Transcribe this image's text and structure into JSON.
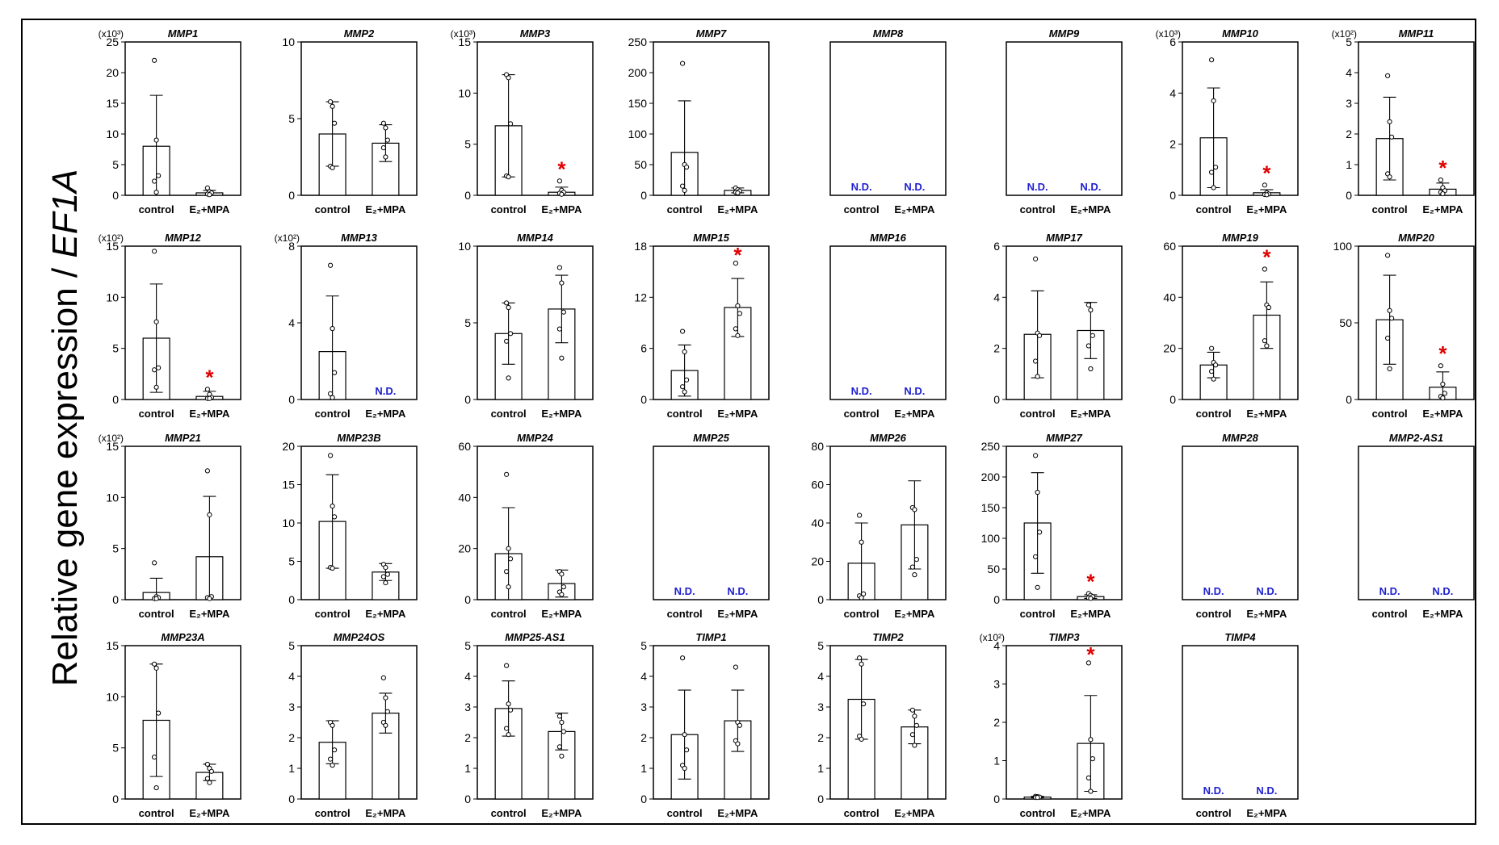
{
  "figure": {
    "ylabel_prefix": "Relative gene expression / ",
    "ylabel_gene": "EF1A",
    "nd_label": "N.D.",
    "sig_marker": "*",
    "colors": {
      "frame": "#000000",
      "bar": "#000000",
      "nd": "#2020d0",
      "sig": "#e00000"
    }
  },
  "chart_data": [
    {
      "type": "bar",
      "title": "MMP1",
      "multiplier": "(x10³)",
      "ylim": [
        0,
        25
      ],
      "yticks": [
        0,
        5,
        10,
        15,
        20,
        25
      ],
      "categories": [
        "control",
        "E₂+MPA"
      ],
      "values": [
        8,
        0.4
      ],
      "errors": [
        8.3,
        0.4
      ],
      "points": [
        [
          22,
          9,
          3.2,
          2.3,
          0.5
        ],
        [
          1.2,
          0.6,
          0.4,
          0.2,
          0.1
        ]
      ],
      "nd": [
        false,
        false
      ],
      "sig": [
        false,
        false
      ]
    },
    {
      "type": "bar",
      "title": "MMP2",
      "multiplier": "",
      "ylim": [
        0,
        10
      ],
      "yticks": [
        0,
        5,
        10
      ],
      "categories": [
        "control",
        "E₂+MPA"
      ],
      "values": [
        4,
        3.4
      ],
      "errors": [
        2.1,
        1.2
      ],
      "points": [
        [
          6.1,
          5.8,
          4.7,
          1.9,
          1.8
        ],
        [
          4.7,
          4.4,
          3.6,
          3.1,
          2.5
        ]
      ],
      "nd": [
        false,
        false
      ],
      "sig": [
        false,
        false
      ]
    },
    {
      "type": "bar",
      "title": "MMP3",
      "multiplier": "(x10³)",
      "ylim": [
        0,
        15
      ],
      "yticks": [
        0,
        5,
        10,
        15
      ],
      "categories": [
        "control",
        "E₂+MPA"
      ],
      "values": [
        6.8,
        0.3
      ],
      "errors": [
        5,
        0.5
      ],
      "points": [
        [
          11.8,
          11.5,
          7,
          1.9,
          1.8
        ],
        [
          1.4,
          0.5,
          0.3,
          0.2,
          0.1
        ]
      ],
      "nd": [
        false,
        false
      ],
      "sig": [
        false,
        true
      ]
    },
    {
      "type": "bar",
      "title": "MMP7",
      "multiplier": "",
      "ylim": [
        0,
        250
      ],
      "yticks": [
        0,
        50,
        100,
        150,
        200,
        250
      ],
      "categories": [
        "control",
        "E₂+MPA"
      ],
      "values": [
        70,
        8
      ],
      "errors": [
        84,
        4
      ],
      "points": [
        [
          215,
          50,
          46,
          15,
          8
        ],
        [
          12,
          9,
          7,
          5,
          4
        ]
      ],
      "nd": [
        false,
        false
      ],
      "sig": [
        false,
        false
      ]
    },
    {
      "type": "bar",
      "title": "MMP8",
      "multiplier": "",
      "ylim": null,
      "yticks": [],
      "categories": [
        "control",
        "E₂+MPA"
      ],
      "values": [
        0,
        0
      ],
      "errors": [
        0,
        0
      ],
      "points": [
        [],
        []
      ],
      "nd": [
        true,
        true
      ],
      "sig": [
        false,
        false
      ]
    },
    {
      "type": "bar",
      "title": "MMP9",
      "multiplier": "",
      "ylim": null,
      "yticks": [],
      "categories": [
        "control",
        "E₂+MPA"
      ],
      "values": [
        0,
        0
      ],
      "errors": [
        0,
        0
      ],
      "points": [
        [],
        []
      ],
      "nd": [
        true,
        true
      ],
      "sig": [
        false,
        false
      ]
    },
    {
      "type": "bar",
      "title": "MMP10",
      "multiplier": "(x10³)",
      "ylim": [
        0,
        6
      ],
      "yticks": [
        0,
        2,
        4,
        6
      ],
      "categories": [
        "control",
        "E₂+MPA"
      ],
      "values": [
        2.25,
        0.1
      ],
      "errors": [
        1.95,
        0.12
      ],
      "points": [
        [
          5.3,
          3.7,
          1.1,
          0.9,
          0.3
        ],
        [
          0.4,
          0.1,
          0.05,
          0.03,
          0.02
        ]
      ],
      "nd": [
        false,
        false
      ],
      "sig": [
        false,
        true
      ]
    },
    {
      "type": "bar",
      "title": "MMP11",
      "multiplier": "(x10²)",
      "ylim": [
        0,
        5
      ],
      "yticks": [
        0,
        1,
        2,
        3,
        4,
        5
      ],
      "categories": [
        "control",
        "E₂+MPA"
      ],
      "values": [
        1.85,
        0.2
      ],
      "errors": [
        1.35,
        0.2
      ],
      "points": [
        [
          3.9,
          2.4,
          1.9,
          0.7,
          0.6
        ],
        [
          0.5,
          0.25,
          0.15,
          0.1,
          0.05
        ]
      ],
      "nd": [
        false,
        false
      ],
      "sig": [
        false,
        true
      ]
    },
    {
      "type": "bar",
      "title": "MMP12",
      "multiplier": "(x10²)",
      "ylim": [
        0,
        15
      ],
      "yticks": [
        0,
        5,
        10,
        15
      ],
      "categories": [
        "control",
        "E₂+MPA"
      ],
      "values": [
        6,
        0.3
      ],
      "errors": [
        5.3,
        0.5
      ],
      "points": [
        [
          14.5,
          7.6,
          3.1,
          2.9,
          1.2
        ],
        [
          1,
          0.5,
          0.2,
          0.1,
          0.1
        ]
      ],
      "nd": [
        false,
        false
      ],
      "sig": [
        false,
        true
      ]
    },
    {
      "type": "bar",
      "title": "MMP13",
      "multiplier": "(x10²)",
      "ylim": [
        0,
        8
      ],
      "yticks": [
        0,
        4,
        8
      ],
      "categories": [
        "control",
        "E₂+MPA"
      ],
      "values": [
        2.5,
        0
      ],
      "errors": [
        2.9,
        0
      ],
      "points": [
        [
          7,
          3.7,
          1.4,
          0.3,
          0.1
        ],
        []
      ],
      "nd": [
        false,
        true
      ],
      "sig": [
        false,
        false
      ]
    },
    {
      "type": "bar",
      "title": "MMP14",
      "multiplier": "",
      "ylim": [
        0,
        10
      ],
      "yticks": [
        0,
        5,
        10
      ],
      "categories": [
        "control",
        "E₂+MPA"
      ],
      "values": [
        4.3,
        5.9
      ],
      "errors": [
        2,
        2.2
      ],
      "points": [
        [
          6.3,
          6,
          4.3,
          3.8,
          1.4
        ],
        [
          8.6,
          7.6,
          5.7,
          4.6,
          2.7
        ]
      ],
      "nd": [
        false,
        false
      ],
      "sig": [
        false,
        false
      ]
    },
    {
      "type": "bar",
      "title": "MMP15",
      "multiplier": "",
      "ylim": [
        0,
        18
      ],
      "yticks": [
        0,
        6,
        12,
        18
      ],
      "categories": [
        "control",
        "E₂+MPA"
      ],
      "values": [
        3.4,
        10.8
      ],
      "errors": [
        3,
        3.4
      ],
      "points": [
        [
          8,
          5.6,
          2.3,
          1.5,
          0.9
        ],
        [
          16,
          11,
          10.1,
          8.3,
          7.5
        ]
      ],
      "nd": [
        false,
        false
      ],
      "sig": [
        false,
        true
      ]
    },
    {
      "type": "bar",
      "title": "MMP16",
      "multiplier": "",
      "ylim": null,
      "yticks": [],
      "categories": [
        "control",
        "E₂+MPA"
      ],
      "values": [
        0,
        0
      ],
      "errors": [
        0,
        0
      ],
      "points": [
        [],
        []
      ],
      "nd": [
        true,
        true
      ],
      "sig": [
        false,
        false
      ]
    },
    {
      "type": "bar",
      "title": "MMP17",
      "multiplier": "",
      "ylim": [
        0,
        6
      ],
      "yticks": [
        0,
        2,
        4,
        6
      ],
      "categories": [
        "control",
        "E₂+MPA"
      ],
      "values": [
        2.55,
        2.7
      ],
      "errors": [
        1.7,
        1.1
      ],
      "points": [
        [
          5.5,
          2.6,
          2.5,
          1.5,
          0.9
        ],
        [
          3.7,
          3.5,
          2.5,
          2.1,
          1.2
        ]
      ],
      "nd": [
        false,
        false
      ],
      "sig": [
        false,
        false
      ]
    },
    {
      "type": "bar",
      "title": "MMP19",
      "multiplier": "",
      "ylim": [
        0,
        60
      ],
      "yticks": [
        0,
        20,
        40,
        60
      ],
      "categories": [
        "control",
        "E₂+MPA"
      ],
      "values": [
        13.5,
        33
      ],
      "errors": [
        5,
        13
      ],
      "points": [
        [
          20,
          14.5,
          13.5,
          11,
          8
        ],
        [
          51,
          37,
          36,
          23,
          21
        ]
      ],
      "nd": [
        false,
        false
      ],
      "sig": [
        false,
        true
      ]
    },
    {
      "type": "bar",
      "title": "MMP20",
      "multiplier": "",
      "ylim": [
        0,
        100
      ],
      "yticks": [
        0,
        50,
        100
      ],
      "categories": [
        "control",
        "E₂+MPA"
      ],
      "values": [
        52,
        8
      ],
      "errors": [
        29,
        10
      ],
      "points": [
        [
          94,
          58,
          53,
          40,
          20
        ],
        [
          22,
          10,
          4,
          2,
          1
        ]
      ],
      "nd": [
        false,
        false
      ],
      "sig": [
        false,
        true
      ]
    },
    {
      "type": "bar",
      "title": "MMP21",
      "multiplier": "(x10²)",
      "ylim": [
        0,
        15
      ],
      "yticks": [
        0,
        5,
        10,
        15
      ],
      "categories": [
        "control",
        "E₂+MPA"
      ],
      "values": [
        0.7,
        4.2
      ],
      "errors": [
        1.4,
        5.9
      ],
      "points": [
        [
          3.6,
          0.3,
          0.2,
          0.1,
          0.1
        ],
        [
          12.6,
          8.3,
          0.3,
          0.2,
          0.1
        ]
      ],
      "nd": [
        false,
        false
      ],
      "sig": [
        false,
        false
      ]
    },
    {
      "type": "bar",
      "title": "MMP23B",
      "multiplier": "",
      "ylim": [
        0,
        20
      ],
      "yticks": [
        0,
        5,
        10,
        15,
        20
      ],
      "categories": [
        "control",
        "E₂+MPA"
      ],
      "values": [
        10.2,
        3.6
      ],
      "errors": [
        6.1,
        1.1
      ],
      "points": [
        [
          18.8,
          12.2,
          10.8,
          4.2,
          4.1
        ],
        [
          4.6,
          4.2,
          3.3,
          3,
          2.2
        ]
      ],
      "nd": [
        false,
        false
      ],
      "sig": [
        false,
        false
      ]
    },
    {
      "type": "bar",
      "title": "MMP24",
      "multiplier": "",
      "ylim": [
        0,
        60
      ],
      "yticks": [
        0,
        20,
        40,
        60
      ],
      "categories": [
        "control",
        "E₂+MPA"
      ],
      "values": [
        18,
        6.3
      ],
      "errors": [
        18,
        5.3
      ],
      "points": [
        [
          49,
          20,
          16,
          11,
          5
        ],
        [
          11,
          10,
          5,
          3,
          2
        ]
      ],
      "nd": [
        false,
        false
      ],
      "sig": [
        false,
        false
      ]
    },
    {
      "type": "bar",
      "title": "MMP25",
      "multiplier": "",
      "ylim": null,
      "yticks": [],
      "categories": [
        "control",
        "E₂+MPA"
      ],
      "values": [
        0,
        0
      ],
      "errors": [
        0,
        0
      ],
      "points": [
        [],
        []
      ],
      "nd": [
        true,
        true
      ],
      "sig": [
        false,
        false
      ]
    },
    {
      "type": "bar",
      "title": "MMP26",
      "multiplier": "",
      "ylim": [
        0,
        80
      ],
      "yticks": [
        0,
        20,
        40,
        60,
        80
      ],
      "categories": [
        "control",
        "E₂+MPA"
      ],
      "values": [
        19,
        39
      ],
      "errors": [
        21,
        23
      ],
      "points": [
        [
          44,
          30,
          3,
          2,
          1
        ],
        [
          48,
          47,
          21,
          17,
          13
        ]
      ],
      "nd": [
        false,
        false
      ],
      "sig": [
        false,
        false
      ]
    },
    {
      "type": "bar",
      "title": "MMP27",
      "multiplier": "",
      "ylim": [
        0,
        250
      ],
      "yticks": [
        0,
        50,
        100,
        150,
        200,
        250
      ],
      "categories": [
        "control",
        "E₂+MPA"
      ],
      "values": [
        125,
        5
      ],
      "errors": [
        82,
        3
      ],
      "points": [
        [
          235,
          175,
          110,
          70,
          20
        ],
        [
          10,
          7,
          5,
          3,
          2
        ]
      ],
      "nd": [
        false,
        false
      ],
      "sig": [
        false,
        true
      ]
    },
    {
      "type": "bar",
      "title": "MMP28",
      "multiplier": "",
      "ylim": null,
      "yticks": [],
      "categories": [
        "control",
        "E₂+MPA"
      ],
      "values": [
        0,
        0
      ],
      "errors": [
        0,
        0
      ],
      "points": [
        [],
        []
      ],
      "nd": [
        true,
        true
      ],
      "sig": [
        false,
        false
      ]
    },
    {
      "type": "bar",
      "title": "MMP2-AS1",
      "multiplier": "",
      "ylim": null,
      "yticks": [],
      "categories": [
        "control",
        "E₂+MPA"
      ],
      "values": [
        0,
        0
      ],
      "errors": [
        0,
        0
      ],
      "points": [
        [],
        []
      ],
      "nd": [
        true,
        true
      ],
      "sig": [
        false,
        false
      ]
    },
    {
      "type": "bar",
      "title": "MMP23A",
      "multiplier": "",
      "ylim": [
        0,
        15
      ],
      "yticks": [
        0,
        5,
        10,
        15
      ],
      "categories": [
        "control",
        "E₂+MPA"
      ],
      "values": [
        7.7,
        2.6
      ],
      "errors": [
        5.5,
        0.8
      ],
      "points": [
        [
          13.2,
          12.8,
          8.4,
          4.1,
          1.1
        ],
        [
          3.4,
          3,
          2.7,
          2,
          1.6
        ]
      ],
      "nd": [
        false,
        false
      ],
      "sig": [
        false,
        false
      ]
    },
    {
      "type": "bar",
      "title": "MMP24OS",
      "multiplier": "",
      "ylim": [
        0,
        5
      ],
      "yticks": [
        0,
        1,
        2,
        3,
        4,
        5
      ],
      "categories": [
        "control",
        "E₂+MPA"
      ],
      "values": [
        1.85,
        2.8
      ],
      "errors": [
        0.7,
        0.65
      ],
      "points": [
        [
          2.5,
          2.4,
          1.6,
          1.3,
          1.1
        ],
        [
          3.95,
          3.3,
          2.85,
          2.5,
          2.4
        ]
      ],
      "nd": [
        false,
        false
      ],
      "sig": [
        false,
        false
      ]
    },
    {
      "type": "bar",
      "title": "MMP25-AS1",
      "multiplier": "",
      "ylim": [
        0,
        5
      ],
      "yticks": [
        0,
        1,
        2,
        3,
        4,
        5
      ],
      "categories": [
        "control",
        "E₂+MPA"
      ],
      "values": [
        2.95,
        2.2
      ],
      "errors": [
        0.9,
        0.6
      ],
      "points": [
        [
          4.35,
          3.1,
          2.9,
          2.3,
          2.1
        ],
        [
          2.7,
          2.5,
          2.2,
          1.7,
          1.4
        ]
      ],
      "nd": [
        false,
        false
      ],
      "sig": [
        false,
        false
      ]
    },
    {
      "type": "bar",
      "title": "TIMP1",
      "multiplier": "",
      "ylim": [
        0,
        5
      ],
      "yticks": [
        0,
        1,
        2,
        3,
        4,
        5
      ],
      "categories": [
        "control",
        "E₂+MPA"
      ],
      "values": [
        2.1,
        2.55
      ],
      "errors": [
        1.45,
        1
      ],
      "points": [
        [
          4.6,
          2.1,
          1.6,
          1.1,
          1
        ],
        [
          4.3,
          2.5,
          2.4,
          1.9,
          1.8
        ]
      ],
      "nd": [
        false,
        false
      ],
      "sig": [
        false,
        false
      ]
    },
    {
      "type": "bar",
      "title": "TIMP2",
      "multiplier": "",
      "ylim": [
        0,
        5
      ],
      "yticks": [
        0,
        1,
        2,
        3,
        4,
        5
      ],
      "categories": [
        "control",
        "E₂+MPA"
      ],
      "values": [
        3.25,
        2.35
      ],
      "errors": [
        1.3,
        0.55
      ],
      "points": [
        [
          4.6,
          4.4,
          3.1,
          2.05,
          1.95
        ],
        [
          2.9,
          2.7,
          2.4,
          2.1,
          1.75
        ]
      ],
      "nd": [
        false,
        false
      ],
      "sig": [
        false,
        false
      ]
    },
    {
      "type": "bar",
      "title": "TIMP3",
      "multiplier": "(x10²)",
      "ylim": [
        0,
        4
      ],
      "yticks": [
        0,
        1,
        2,
        3,
        4
      ],
      "categories": [
        "control",
        "E₂+MPA"
      ],
      "values": [
        0.05,
        1.45
      ],
      "errors": [
        0.02,
        1.25
      ],
      "points": [
        [
          0.07,
          0.06,
          0.05,
          0.04,
          0.04
        ],
        [
          3.55,
          1.55,
          1.05,
          0.55,
          0.2
        ]
      ],
      "nd": [
        false,
        false
      ],
      "sig": [
        false,
        true
      ]
    },
    {
      "type": "bar",
      "title": "TIMP4",
      "multiplier": "",
      "ylim": null,
      "yticks": [],
      "categories": [
        "control",
        "E₂+MPA"
      ],
      "values": [
        0,
        0
      ],
      "errors": [
        0,
        0
      ],
      "points": [
        [],
        []
      ],
      "nd": [
        true,
        true
      ],
      "sig": [
        false,
        false
      ]
    }
  ]
}
